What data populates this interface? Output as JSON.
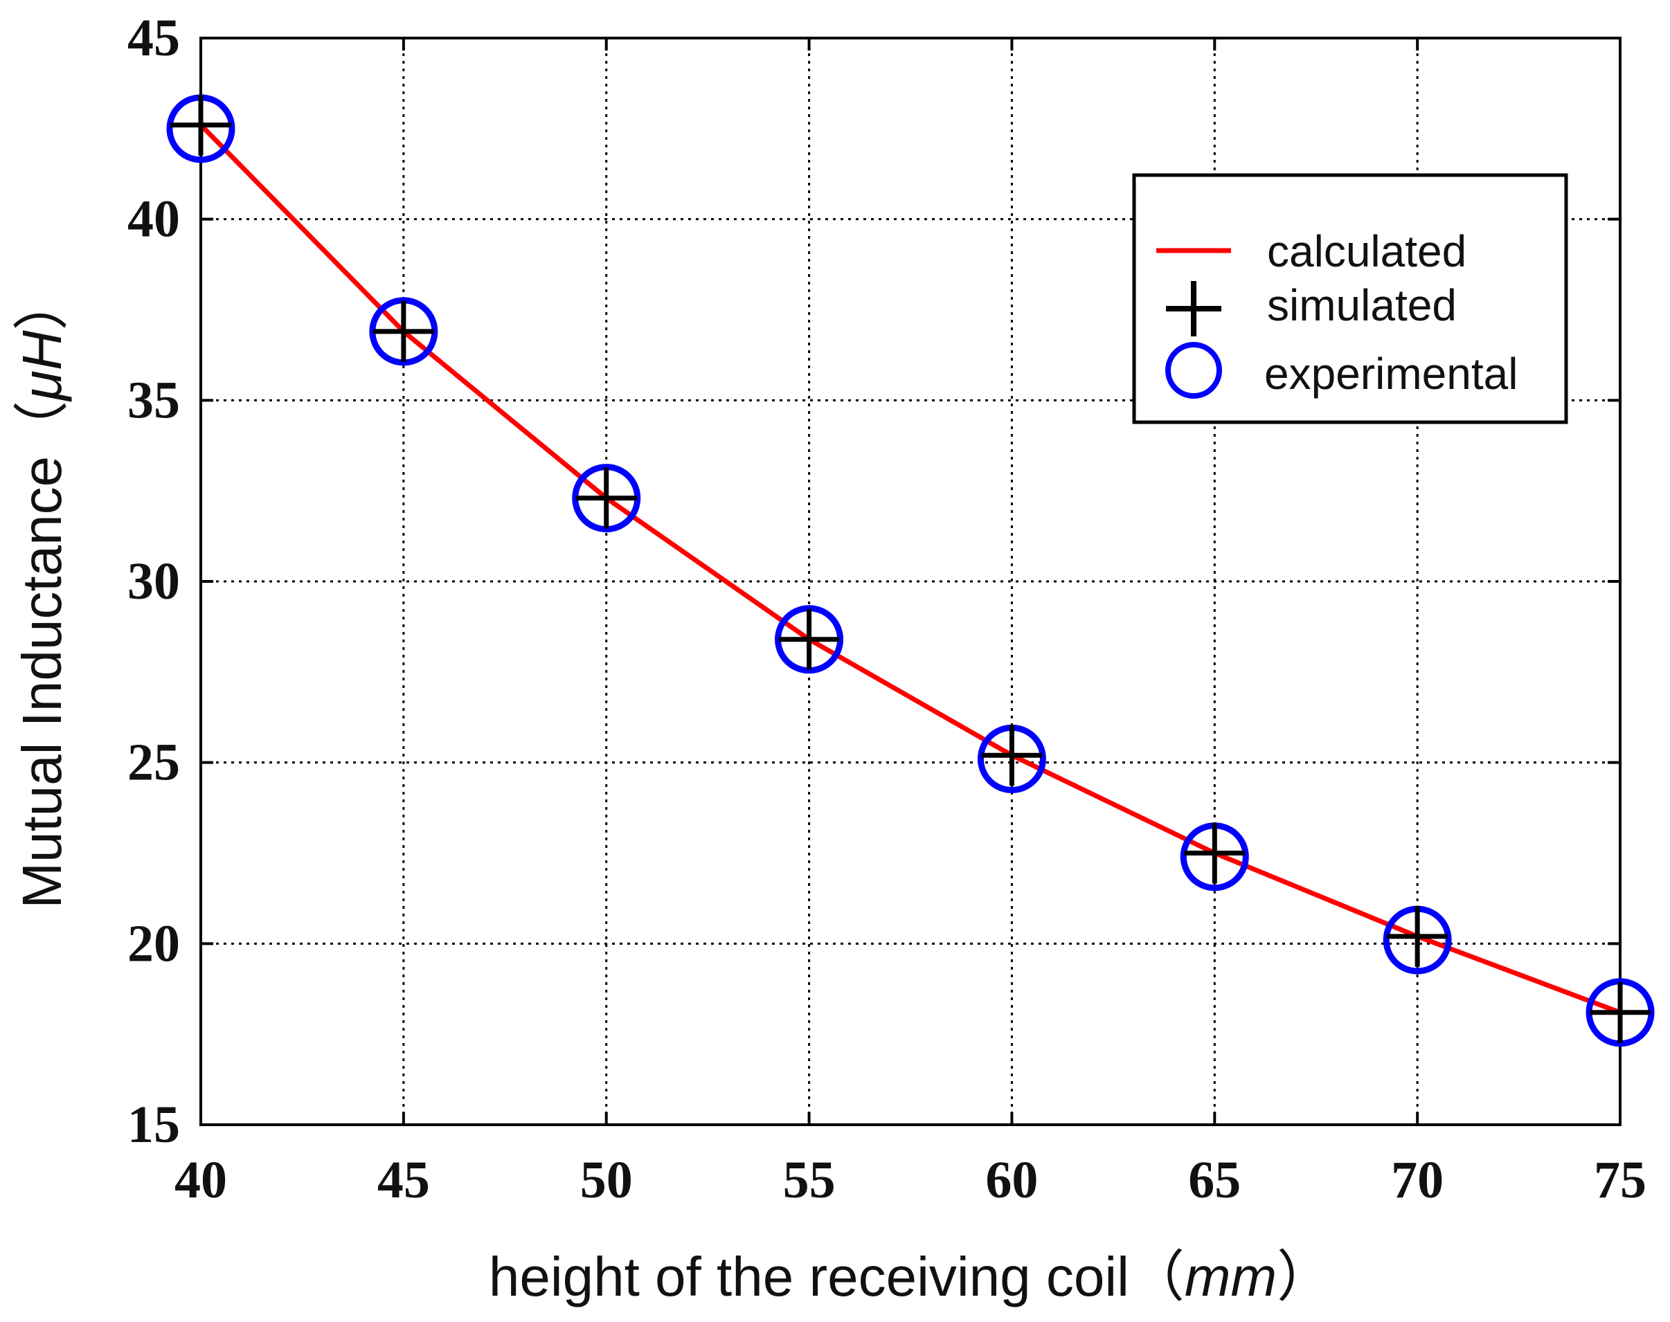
{
  "chart_data": {
    "type": "line",
    "x": [
      40,
      45,
      50,
      55,
      60,
      65,
      70,
      75
    ],
    "series": [
      {
        "name": "calculated",
        "style": "line",
        "color": "#ff0000",
        "values": [
          42.6,
          36.9,
          32.3,
          28.4,
          25.2,
          22.5,
          20.2,
          18.1
        ]
      },
      {
        "name": "simulated",
        "style": "plus-marker",
        "color": "#000000",
        "values": [
          42.6,
          36.9,
          32.3,
          28.4,
          25.2,
          22.5,
          20.2,
          18.1
        ]
      },
      {
        "name": "experimental",
        "style": "circle-marker",
        "color": "#0000ff",
        "values": [
          42.5,
          36.9,
          32.3,
          28.4,
          25.1,
          22.4,
          20.1,
          18.1
        ]
      }
    ],
    "xlabel": {
      "main": "height of the receiving coil",
      "unit": "mm",
      "open": "（",
      "close": "）"
    },
    "ylabel": {
      "main": "Mutual Inductance",
      "unit": "μH",
      "open": "（",
      "close": "）"
    },
    "xlim": [
      40,
      75
    ],
    "ylim": [
      15,
      45
    ],
    "xticks": [
      40,
      45,
      50,
      55,
      60,
      65,
      70,
      75
    ],
    "yticks": [
      15,
      20,
      25,
      30,
      35,
      40,
      45
    ],
    "grid": true,
    "grid_style": "dotted",
    "legend_position": "top-right"
  }
}
